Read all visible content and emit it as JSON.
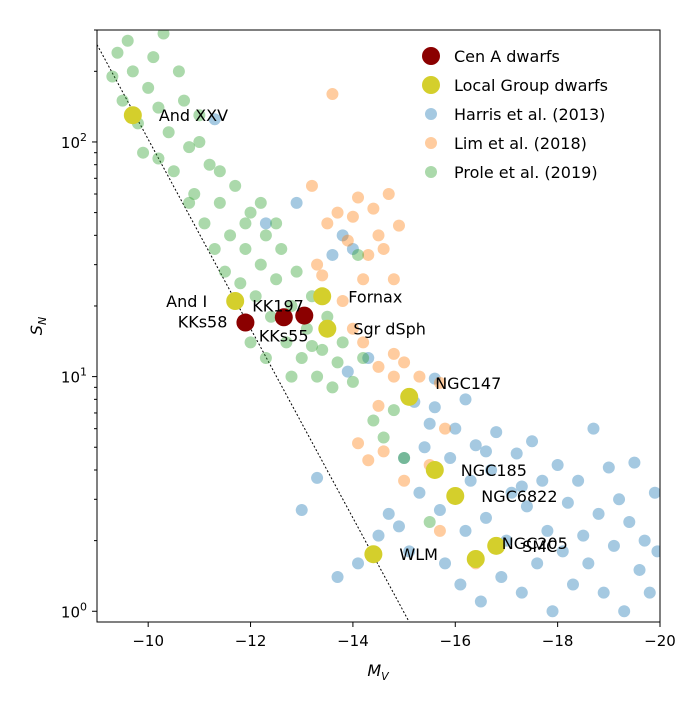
{
  "chart_data": {
    "type": "scatter",
    "xlabel_main": "M",
    "xlabel_sub": "V",
    "ylabel_main": "S",
    "ylabel_sub": "N",
    "xlim": [
      -9,
      -20
    ],
    "ylim": [
      0.9,
      300
    ],
    "yscale": "log",
    "x_ticks": [
      {
        "value": -10,
        "label": "−10"
      },
      {
        "value": -12,
        "label": "−12"
      },
      {
        "value": -14,
        "label": "−14"
      },
      {
        "value": -16,
        "label": "−16"
      },
      {
        "value": -18,
        "label": "−18"
      },
      {
        "value": -20,
        "label": "−20"
      }
    ],
    "y_ticks": [
      {
        "value": 1,
        "base": "10",
        "exp": "0"
      },
      {
        "value": 10,
        "base": "10",
        "exp": "1"
      },
      {
        "value": 100,
        "base": "10",
        "exp": "2"
      }
    ],
    "grid": false,
    "legend_position": "top-right",
    "reference_line": {
      "style": "dotted",
      "color": "#000000",
      "points": [
        [
          -9.0,
          260
        ],
        [
          -15.1,
          0.9
        ]
      ]
    },
    "series": [
      {
        "name": "Cen A dwarfs",
        "color": "#8b0000",
        "points": [
          {
            "x": -11.9,
            "y": 17.0,
            "label": "KKs58"
          },
          {
            "x": -12.65,
            "y": 17.9,
            "label": "KKs55"
          },
          {
            "x": -13.05,
            "y": 18.2,
            "label": "KK197"
          }
        ]
      },
      {
        "name": "Local Group dwarfs",
        "color": "#d4cf2c",
        "points": [
          {
            "x": -9.7,
            "y": 130,
            "label": "And XXV"
          },
          {
            "x": -11.7,
            "y": 21,
            "label": "And I"
          },
          {
            "x": -13.4,
            "y": 22,
            "label": "Fornax"
          },
          {
            "x": -13.5,
            "y": 16,
            "label": "Sgr dSph"
          },
          {
            "x": -15.1,
            "y": 8.2,
            "label": "NGC147"
          },
          {
            "x": -15.6,
            "y": 4.0,
            "label": "NGC185"
          },
          {
            "x": -16.0,
            "y": 3.1,
            "label": "NGC6822"
          },
          {
            "x": -14.4,
            "y": 1.75,
            "label": "WLM"
          },
          {
            "x": -16.8,
            "y": 1.9,
            "label": "SMC"
          },
          {
            "x": -16.4,
            "y": 1.67,
            "label": "NGC205"
          }
        ]
      },
      {
        "name": "Harris et al. (2013)",
        "color": "#1f77b4",
        "points": [
          {
            "x": -13.7,
            "y": 1.4
          },
          {
            "x": -14.1,
            "y": 1.6
          },
          {
            "x": -14.5,
            "y": 2.1
          },
          {
            "x": -14.7,
            "y": 2.6
          },
          {
            "x": -14.9,
            "y": 2.3
          },
          {
            "x": -15.1,
            "y": 1.8
          },
          {
            "x": -15.3,
            "y": 3.2
          },
          {
            "x": -15.4,
            "y": 5.0
          },
          {
            "x": -15.5,
            "y": 6.3
          },
          {
            "x": -15.6,
            "y": 7.4
          },
          {
            "x": -15.7,
            "y": 2.7
          },
          {
            "x": -15.8,
            "y": 1.6
          },
          {
            "x": -15.9,
            "y": 4.5
          },
          {
            "x": -16.0,
            "y": 6.0
          },
          {
            "x": -16.1,
            "y": 1.3
          },
          {
            "x": -16.2,
            "y": 2.2
          },
          {
            "x": -16.3,
            "y": 3.6
          },
          {
            "x": -16.4,
            "y": 5.1
          },
          {
            "x": -16.5,
            "y": 1.1
          },
          {
            "x": -16.6,
            "y": 2.5
          },
          {
            "x": -16.7,
            "y": 4.0
          },
          {
            "x": -16.8,
            "y": 5.8
          },
          {
            "x": -16.9,
            "y": 1.4
          },
          {
            "x": -17.0,
            "y": 2.0
          },
          {
            "x": -17.1,
            "y": 3.2
          },
          {
            "x": -17.2,
            "y": 4.7
          },
          {
            "x": -17.3,
            "y": 1.2
          },
          {
            "x": -17.4,
            "y": 2.8
          },
          {
            "x": -17.5,
            "y": 5.3
          },
          {
            "x": -17.6,
            "y": 1.6
          },
          {
            "x": -17.7,
            "y": 3.6
          },
          {
            "x": -17.8,
            "y": 2.2
          },
          {
            "x": -17.9,
            "y": 1.0
          },
          {
            "x": -18.0,
            "y": 4.2
          },
          {
            "x": -18.1,
            "y": 1.8
          },
          {
            "x": -18.2,
            "y": 2.9
          },
          {
            "x": -18.3,
            "y": 1.3
          },
          {
            "x": -18.4,
            "y": 3.6
          },
          {
            "x": -18.5,
            "y": 2.1
          },
          {
            "x": -18.6,
            "y": 1.6
          },
          {
            "x": -18.7,
            "y": 6.0
          },
          {
            "x": -18.8,
            "y": 2.6
          },
          {
            "x": -18.9,
            "y": 1.2
          },
          {
            "x": -19.0,
            "y": 4.1
          },
          {
            "x": -19.1,
            "y": 1.9
          },
          {
            "x": -19.2,
            "y": 3.0
          },
          {
            "x": -19.3,
            "y": 1.0
          },
          {
            "x": -19.4,
            "y": 2.4
          },
          {
            "x": -19.5,
            "y": 4.3
          },
          {
            "x": -19.6,
            "y": 1.5
          },
          {
            "x": -19.7,
            "y": 2.0
          },
          {
            "x": -19.8,
            "y": 1.2
          },
          {
            "x": -19.9,
            "y": 3.2
          },
          {
            "x": -19.95,
            "y": 1.8
          },
          {
            "x": -13.9,
            "y": 10.5
          },
          {
            "x": -14.3,
            "y": 12.0
          },
          {
            "x": -15.0,
            "y": 4.5
          },
          {
            "x": -15.2,
            "y": 7.8
          },
          {
            "x": -15.6,
            "y": 9.8
          },
          {
            "x": -16.2,
            "y": 8.0
          },
          {
            "x": -14.0,
            "y": 35
          },
          {
            "x": -13.8,
            "y": 40
          },
          {
            "x": -13.6,
            "y": 33
          },
          {
            "x": -12.3,
            "y": 45
          },
          {
            "x": -11.3,
            "y": 125
          },
          {
            "x": -12.9,
            "y": 55
          },
          {
            "x": -13.3,
            "y": 3.7
          },
          {
            "x": -13.0,
            "y": 2.7
          },
          {
            "x": -16.6,
            "y": 4.8
          },
          {
            "x": -17.3,
            "y": 3.4
          }
        ]
      },
      {
        "name": "Lim et al. (2018)",
        "color": "#ff7f0e",
        "points": [
          {
            "x": -13.2,
            "y": 65
          },
          {
            "x": -13.3,
            "y": 30
          },
          {
            "x": -13.4,
            "y": 27
          },
          {
            "x": -13.5,
            "y": 45
          },
          {
            "x": -13.6,
            "y": 160
          },
          {
            "x": -13.7,
            "y": 50
          },
          {
            "x": -13.8,
            "y": 21
          },
          {
            "x": -13.9,
            "y": 38
          },
          {
            "x": -14.0,
            "y": 48
          },
          {
            "x": -14.1,
            "y": 58
          },
          {
            "x": -14.2,
            "y": 26
          },
          {
            "x": -14.3,
            "y": 33
          },
          {
            "x": -14.4,
            "y": 52
          },
          {
            "x": -14.5,
            "y": 40
          },
          {
            "x": -14.6,
            "y": 35
          },
          {
            "x": -14.7,
            "y": 60
          },
          {
            "x": -14.8,
            "y": 26
          },
          {
            "x": -14.9,
            "y": 44
          },
          {
            "x": -14.0,
            "y": 16
          },
          {
            "x": -14.2,
            "y": 14
          },
          {
            "x": -14.5,
            "y": 11
          },
          {
            "x": -14.8,
            "y": 10
          },
          {
            "x": -15.0,
            "y": 11.5
          },
          {
            "x": -15.3,
            "y": 10.0
          },
          {
            "x": -15.7,
            "y": 9.4
          },
          {
            "x": -14.1,
            "y": 5.2
          },
          {
            "x": -14.3,
            "y": 4.4
          },
          {
            "x": -14.6,
            "y": 4.8
          },
          {
            "x": -15.0,
            "y": 3.6
          },
          {
            "x": -15.5,
            "y": 4.2
          },
          {
            "x": -14.5,
            "y": 7.5
          },
          {
            "x": -14.8,
            "y": 12.5
          },
          {
            "x": -15.8,
            "y": 6.0
          },
          {
            "x": -16.4,
            "y": 1.6
          },
          {
            "x": -15.7,
            "y": 2.2
          }
        ]
      },
      {
        "name": "Prole et al. (2019)",
        "color": "#2ca02c",
        "points": [
          {
            "x": -9.3,
            "y": 190
          },
          {
            "x": -9.4,
            "y": 240
          },
          {
            "x": -9.5,
            "y": 150
          },
          {
            "x": -9.6,
            "y": 270
          },
          {
            "x": -9.7,
            "y": 200
          },
          {
            "x": -9.8,
            "y": 120
          },
          {
            "x": -9.9,
            "y": 90
          },
          {
            "x": -10.0,
            "y": 170
          },
          {
            "x": -10.1,
            "y": 230
          },
          {
            "x": -10.2,
            "y": 140
          },
          {
            "x": -10.3,
            "y": 290
          },
          {
            "x": -10.4,
            "y": 110
          },
          {
            "x": -10.5,
            "y": 75
          },
          {
            "x": -10.6,
            "y": 200
          },
          {
            "x": -10.7,
            "y": 150
          },
          {
            "x": -10.8,
            "y": 95
          },
          {
            "x": -10.9,
            "y": 60
          },
          {
            "x": -11.0,
            "y": 130
          },
          {
            "x": -11.1,
            "y": 45
          },
          {
            "x": -11.2,
            "y": 80
          },
          {
            "x": -11.3,
            "y": 35
          },
          {
            "x": -11.4,
            "y": 55
          },
          {
            "x": -11.5,
            "y": 28
          },
          {
            "x": -11.6,
            "y": 40
          },
          {
            "x": -11.7,
            "y": 65
          },
          {
            "x": -11.8,
            "y": 25
          },
          {
            "x": -11.9,
            "y": 35
          },
          {
            "x": -12.0,
            "y": 50
          },
          {
            "x": -12.1,
            "y": 22
          },
          {
            "x": -12.2,
            "y": 30
          },
          {
            "x": -12.3,
            "y": 40
          },
          {
            "x": -12.4,
            "y": 18
          },
          {
            "x": -12.5,
            "y": 26
          },
          {
            "x": -12.6,
            "y": 35
          },
          {
            "x": -12.7,
            "y": 14
          },
          {
            "x": -12.8,
            "y": 20
          },
          {
            "x": -12.9,
            "y": 28
          },
          {
            "x": -13.0,
            "y": 12
          },
          {
            "x": -13.1,
            "y": 16
          },
          {
            "x": -13.2,
            "y": 22
          },
          {
            "x": -13.3,
            "y": 10
          },
          {
            "x": -13.4,
            "y": 13
          },
          {
            "x": -13.5,
            "y": 18
          },
          {
            "x": -13.6,
            "y": 9
          },
          {
            "x": -13.7,
            "y": 11.5
          },
          {
            "x": -13.8,
            "y": 14
          },
          {
            "x": -14.0,
            "y": 9.5
          },
          {
            "x": -14.2,
            "y": 12
          },
          {
            "x": -14.4,
            "y": 6.5
          },
          {
            "x": -14.6,
            "y": 5.5
          },
          {
            "x": -14.8,
            "y": 7.2
          },
          {
            "x": -15.0,
            "y": 4.5
          },
          {
            "x": -15.5,
            "y": 2.4
          },
          {
            "x": -10.2,
            "y": 85
          },
          {
            "x": -10.8,
            "y": 55
          },
          {
            "x": -11.0,
            "y": 100
          },
          {
            "x": -11.4,
            "y": 75
          },
          {
            "x": -11.9,
            "y": 45
          },
          {
            "x": -12.2,
            "y": 55
          },
          {
            "x": -12.5,
            "y": 45
          },
          {
            "x": -12.0,
            "y": 14
          },
          {
            "x": -12.3,
            "y": 12
          },
          {
            "x": -12.8,
            "y": 10
          },
          {
            "x": -13.2,
            "y": 13.5
          },
          {
            "x": -14.1,
            "y": 33
          }
        ]
      }
    ]
  }
}
